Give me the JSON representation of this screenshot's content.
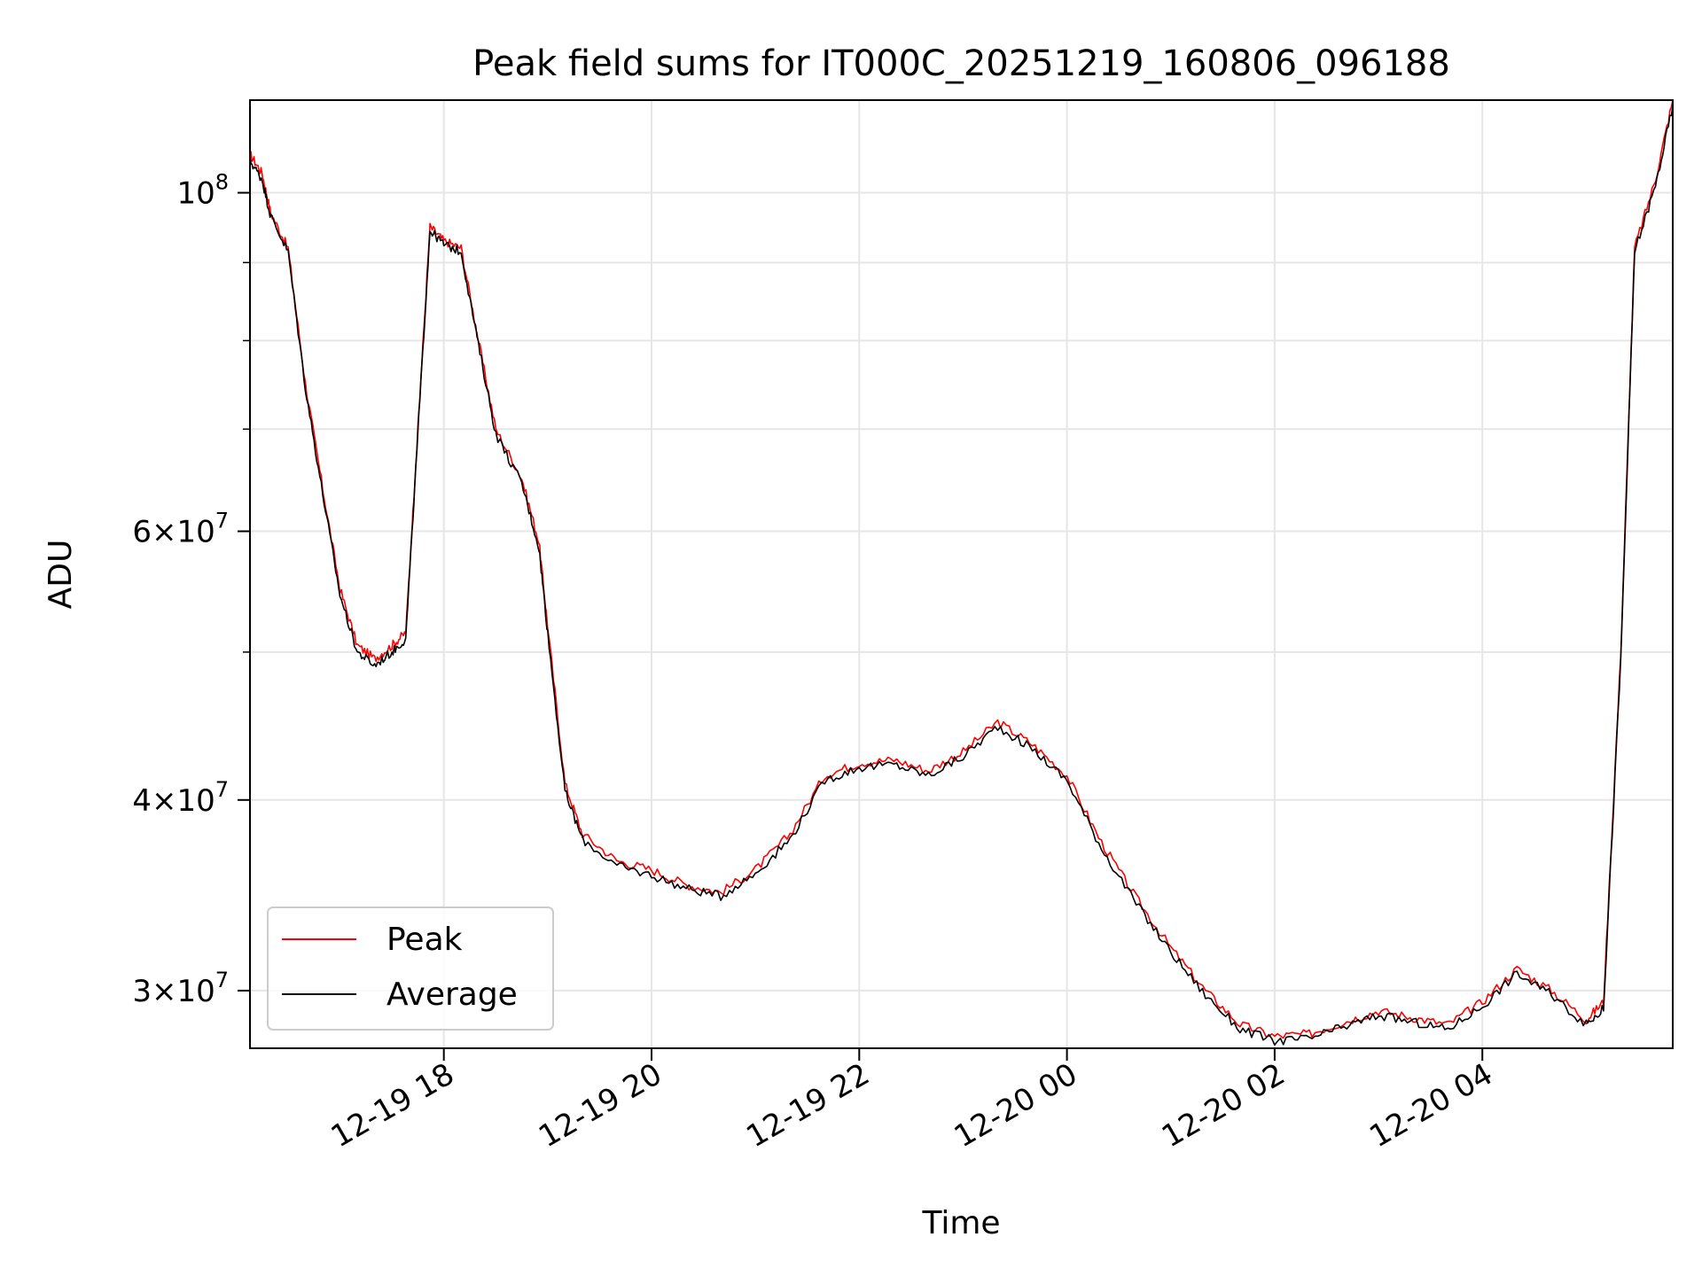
{
  "chart_data": {
    "type": "line",
    "title": "Peak field sums for IT000C_20251219_160806_096188",
    "xlabel": "Time",
    "ylabel": "ADU",
    "yscale": "log",
    "xlim": [
      "2025-12-19 16:08",
      "2025-12-20 05:50"
    ],
    "ylim": [
      27500000,
      115000000
    ],
    "x_ticks": [
      "12-19 18",
      "12-19 20",
      "12-19 22",
      "12-20 00",
      "12-20 02",
      "12-20 04"
    ],
    "y_ticks": [
      {
        "value": 30000000,
        "mantissa": "3",
        "exponent": "7"
      },
      {
        "value": 40000000,
        "mantissa": "4",
        "exponent": "7"
      },
      {
        "value": 60000000,
        "mantissa": "6",
        "exponent": "7"
      },
      {
        "value": 100000000,
        "mantissa": "",
        "exponent": "8"
      }
    ],
    "y_minor_ticks": [
      50000000,
      70000000,
      80000000,
      90000000
    ],
    "grid": true,
    "legend_position": "lower-left",
    "colors": {
      "peak": "#ff0000",
      "average": "#000000",
      "grid": "#e6e6e6"
    },
    "series": [
      {
        "name": "Peak",
        "color": "#ff0000",
        "points": [
          [
            "2025-12-19 16:08",
            106000000
          ],
          [
            "2025-12-19 16:15",
            103000000
          ],
          [
            "2025-12-19 16:20",
            97000000
          ],
          [
            "2025-12-19 16:30",
            92000000
          ],
          [
            "2025-12-19 16:40",
            75000000
          ],
          [
            "2025-12-19 16:50",
            64000000
          ],
          [
            "2025-12-19 17:00",
            55000000
          ],
          [
            "2025-12-19 17:10",
            50500000
          ],
          [
            "2025-12-19 17:20",
            49500000
          ],
          [
            "2025-12-19 17:30",
            50500000
          ],
          [
            "2025-12-19 17:38",
            51500000
          ],
          [
            "2025-12-19 17:45",
            70000000
          ],
          [
            "2025-12-19 17:52",
            95000000
          ],
          [
            "2025-12-19 18:00",
            93000000
          ],
          [
            "2025-12-19 18:10",
            92000000
          ],
          [
            "2025-12-19 18:20",
            80000000
          ],
          [
            "2025-12-19 18:30",
            70000000
          ],
          [
            "2025-12-19 18:45",
            65000000
          ],
          [
            "2025-12-19 18:55",
            59000000
          ],
          [
            "2025-12-19 19:00",
            52000000
          ],
          [
            "2025-12-19 19:10",
            41000000
          ],
          [
            "2025-12-19 19:20",
            38000000
          ],
          [
            "2025-12-19 19:40",
            36500000
          ],
          [
            "2025-12-19 20:00",
            36000000
          ],
          [
            "2025-12-19 20:20",
            35200000
          ],
          [
            "2025-12-19 20:40",
            34800000
          ],
          [
            "2025-12-19 21:00",
            36000000
          ],
          [
            "2025-12-19 21:20",
            38000000
          ],
          [
            "2025-12-19 21:40",
            41500000
          ],
          [
            "2025-12-19 22:00",
            42300000
          ],
          [
            "2025-12-19 22:20",
            42500000
          ],
          [
            "2025-12-19 22:40",
            41800000
          ],
          [
            "2025-12-19 23:00",
            43000000
          ],
          [
            "2025-12-19 23:20",
            45000000
          ],
          [
            "2025-12-19 23:40",
            43500000
          ],
          [
            "2025-12-20 00:00",
            41500000
          ],
          [
            "2025-12-20 00:20",
            37500000
          ],
          [
            "2025-12-20 00:40",
            34500000
          ],
          [
            "2025-12-20 01:00",
            32000000
          ],
          [
            "2025-12-20 01:20",
            30000000
          ],
          [
            "2025-12-20 01:40",
            28500000
          ],
          [
            "2025-12-20 02:00",
            28000000
          ],
          [
            "2025-12-20 02:20",
            28100000
          ],
          [
            "2025-12-20 02:40",
            28600000
          ],
          [
            "2025-12-20 03:00",
            29100000
          ],
          [
            "2025-12-20 03:20",
            28800000
          ],
          [
            "2025-12-20 03:40",
            28500000
          ],
          [
            "2025-12-20 04:00",
            29500000
          ],
          [
            "2025-12-20 04:20",
            31000000
          ],
          [
            "2025-12-20 04:40",
            30000000
          ],
          [
            "2025-12-20 05:00",
            28700000
          ],
          [
            "2025-12-20 05:10",
            29500000
          ],
          [
            "2025-12-20 05:20",
            50000000
          ],
          [
            "2025-12-20 05:28",
            92000000
          ],
          [
            "2025-12-20 05:40",
            102000000
          ],
          [
            "2025-12-20 05:50",
            115000000
          ]
        ]
      },
      {
        "name": "Average",
        "color": "#000000",
        "points": [
          [
            "2025-12-19 16:08",
            105000000
          ],
          [
            "2025-12-19 16:15",
            102000000
          ],
          [
            "2025-12-19 16:20",
            96500000
          ],
          [
            "2025-12-19 16:30",
            91500000
          ],
          [
            "2025-12-19 16:40",
            74500000
          ],
          [
            "2025-12-19 16:50",
            63500000
          ],
          [
            "2025-12-19 17:00",
            54500000
          ],
          [
            "2025-12-19 17:10",
            50000000
          ],
          [
            "2025-12-19 17:20",
            49000000
          ],
          [
            "2025-12-19 17:30",
            50000000
          ],
          [
            "2025-12-19 17:38",
            51000000
          ],
          [
            "2025-12-19 17:45",
            69500000
          ],
          [
            "2025-12-19 17:52",
            94500000
          ],
          [
            "2025-12-19 18:00",
            92500000
          ],
          [
            "2025-12-19 18:10",
            91500000
          ],
          [
            "2025-12-19 18:20",
            79500000
          ],
          [
            "2025-12-19 18:30",
            69500000
          ],
          [
            "2025-12-19 18:45",
            64500000
          ],
          [
            "2025-12-19 18:55",
            58500000
          ],
          [
            "2025-12-19 19:00",
            51500000
          ],
          [
            "2025-12-19 19:10",
            40500000
          ],
          [
            "2025-12-19 19:20",
            37700000
          ],
          [
            "2025-12-19 19:40",
            36200000
          ],
          [
            "2025-12-19 20:00",
            35700000
          ],
          [
            "2025-12-19 20:20",
            35000000
          ],
          [
            "2025-12-19 20:40",
            34600000
          ],
          [
            "2025-12-19 21:00",
            35800000
          ],
          [
            "2025-12-19 21:20",
            37700000
          ],
          [
            "2025-12-19 21:40",
            41200000
          ],
          [
            "2025-12-19 22:00",
            42000000
          ],
          [
            "2025-12-19 22:20",
            42200000
          ],
          [
            "2025-12-19 22:40",
            41500000
          ],
          [
            "2025-12-19 23:00",
            42700000
          ],
          [
            "2025-12-19 23:20",
            44700000
          ],
          [
            "2025-12-19 23:40",
            43200000
          ],
          [
            "2025-12-20 00:00",
            41200000
          ],
          [
            "2025-12-20 00:20",
            37200000
          ],
          [
            "2025-12-20 00:40",
            34200000
          ],
          [
            "2025-12-20 01:00",
            31800000
          ],
          [
            "2025-12-20 01:20",
            29800000
          ],
          [
            "2025-12-20 01:40",
            28300000
          ],
          [
            "2025-12-20 02:00",
            27800000
          ],
          [
            "2025-12-20 02:20",
            27900000
          ],
          [
            "2025-12-20 02:40",
            28400000
          ],
          [
            "2025-12-20 03:00",
            28900000
          ],
          [
            "2025-12-20 03:20",
            28600000
          ],
          [
            "2025-12-20 03:40",
            28300000
          ],
          [
            "2025-12-20 04:00",
            29300000
          ],
          [
            "2025-12-20 04:20",
            30800000
          ],
          [
            "2025-12-20 04:40",
            29800000
          ],
          [
            "2025-12-20 05:00",
            28500000
          ],
          [
            "2025-12-20 05:10",
            29200000
          ],
          [
            "2025-12-20 05:20",
            49500000
          ],
          [
            "2025-12-20 05:28",
            91500000
          ],
          [
            "2025-12-20 05:40",
            101000000
          ],
          [
            "2025-12-20 05:50",
            114000000
          ]
        ]
      }
    ]
  }
}
